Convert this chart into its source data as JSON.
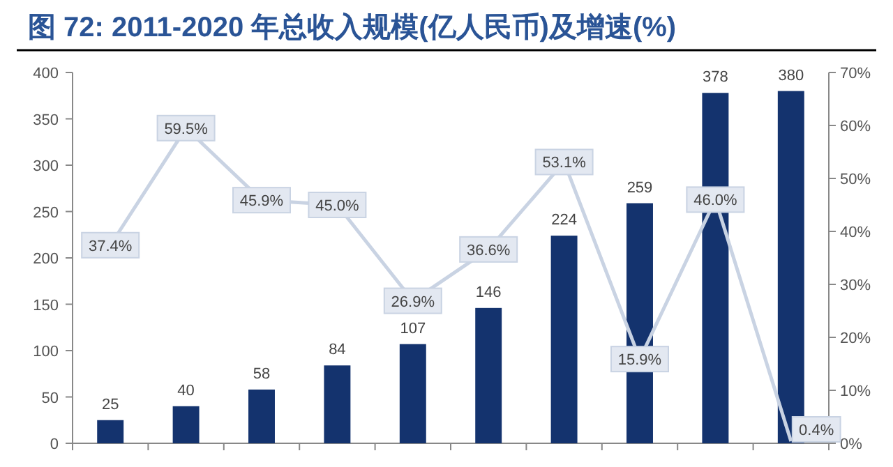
{
  "chart_data": {
    "type": "bar",
    "title": "图 72: 2011-2020 年总收入规模(亿人民币)及增速(%)",
    "categories": [
      null,
      null,
      null,
      null,
      null,
      null,
      null,
      null,
      null,
      null
    ],
    "series": [
      {
        "color": "#14336e",
        "values": [
          25,
          40,
          58,
          84,
          107,
          146,
          224,
          259,
          378,
          380
        ],
        "value_labels": [
          "25",
          "40",
          "58",
          "84",
          "107",
          "146",
          "224",
          "259",
          "378",
          "380"
        ]
      },
      {
        "type": "line",
        "axis": "y2",
        "marker": "square",
        "color": "#c9d3e3",
        "values": [
          37.4,
          59.5,
          45.9,
          45.0,
          26.9,
          36.6,
          53.1,
          15.9,
          46.0,
          0.4
        ],
        "value_labels": [
          "37.4%",
          "59.5%",
          "45.9%",
          "45.0%",
          "26.9%",
          "36.6%",
          "53.1%",
          "15.9%",
          "46.0%",
          "0.4%"
        ]
      }
    ],
    "ylim": [
      0,
      400
    ],
    "yticks": [
      0,
      50,
      100,
      150,
      200,
      250,
      300,
      350,
      400
    ],
    "y2lim": [
      0,
      70
    ],
    "y2ticks": [
      {
        "value": 0,
        "label": "0%"
      },
      {
        "value": 10,
        "label": "10%"
      },
      {
        "value": 20,
        "label": "20%"
      },
      {
        "value": 30,
        "label": "30%"
      },
      {
        "value": 40,
        "label": "40%"
      },
      {
        "value": 50,
        "label": "50%"
      },
      {
        "value": 60,
        "label": "60%"
      },
      {
        "value": 70,
        "label": "70%"
      }
    ],
    "grid": false,
    "line_style": "solid"
  }
}
